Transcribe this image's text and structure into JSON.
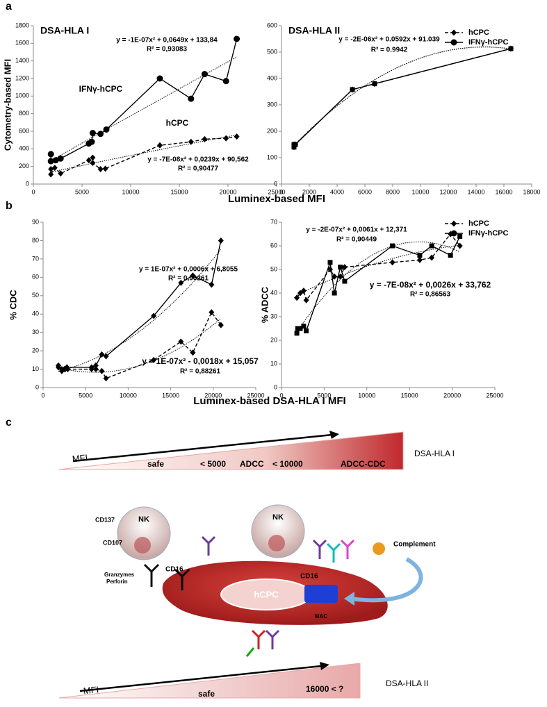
{
  "panel_labels": [
    "a",
    "b",
    "c"
  ],
  "x_axis_labels": [
    "Luminex-based MFI",
    "Luminex-based DSA-HLA I MFI"
  ],
  "chart_data": [
    {
      "type": "scatter",
      "title": "DSA-HLA I",
      "ylabel": "Cytometry-based MFI",
      "xlim": [
        0,
        25000
      ],
      "xticks": [
        0,
        5000,
        10000,
        15000,
        20000,
        25000
      ],
      "ylim": [
        0,
        1800
      ],
      "yticks": [
        0,
        200,
        400,
        600,
        800,
        1000,
        1200,
        1400,
        1600,
        1800
      ],
      "trendline": true,
      "legend": "none",
      "annotations": [
        "y = -1E-07x² + 0,0649x + 133,84",
        "R² = 0,93083",
        "IFNγ-hCPC",
        "hCPC",
        "y = -7E-08x² + 0,0239x + 90,562",
        "R² = 0,90477"
      ],
      "series": [
        {
          "name": "hCPC",
          "color": "#000000",
          "marker": "diamond",
          "dashed": true,
          "x": [
            1800,
            1800,
            2200,
            2800,
            5700,
            6100,
            6100,
            6900,
            7400,
            13000,
            16200,
            17600,
            19800,
            20900
          ],
          "values": [
            170,
            110,
            185,
            120,
            270,
            300,
            240,
            170,
            175,
            440,
            480,
            510,
            520,
            540
          ]
        },
        {
          "name": "IFNγ-hCPC",
          "color": "#000000",
          "marker": "circle",
          "dashed": false,
          "x": [
            1800,
            1800,
            2300,
            2800,
            5700,
            6000,
            6100,
            6900,
            7500,
            13000,
            16200,
            17600,
            19800,
            20900
          ],
          "values": [
            340,
            260,
            270,
            290,
            460,
            480,
            580,
            570,
            620,
            1200,
            970,
            1250,
            1170,
            1650
          ]
        }
      ]
    },
    {
      "type": "scatter",
      "title": "DSA-HLA II",
      "xlim": [
        0,
        18000
      ],
      "xticks": [
        0,
        2000,
        4000,
        6000,
        8000,
        10000,
        12000,
        14000,
        16000,
        18000
      ],
      "ylim": [
        0,
        600
      ],
      "yticks": [
        0,
        100,
        200,
        300,
        400,
        500,
        600
      ],
      "trendline": true,
      "legend": "upper right",
      "annotations": [
        "y = -2E-06x² + 0.0592x + 91.039",
        "R² = 0.9942"
      ],
      "series": [
        {
          "name": "hCPC",
          "color": "#000000",
          "marker": "diamond",
          "dashed": true,
          "x": [
            900,
            900,
            1000,
            5100,
            6700,
            16500
          ],
          "values": [
            140,
            150,
            150,
            358,
            380,
            513
          ]
        },
        {
          "name": "IFNγ-hCPC",
          "color": "#000000",
          "marker": "square",
          "dashed": false,
          "x": [
            900,
            900,
            1000,
            5100,
            6700,
            16500
          ],
          "values": [
            140,
            150,
            150,
            358,
            380,
            513
          ]
        }
      ]
    },
    {
      "type": "scatter",
      "ylabel": "% CDC",
      "xlim": [
        0,
        25000
      ],
      "xticks": [
        0,
        5000,
        10000,
        15000,
        20000,
        25000
      ],
      "ylim": [
        0,
        90
      ],
      "yticks": [
        0,
        10,
        20,
        30,
        40,
        50,
        60,
        70,
        80,
        90
      ],
      "trendline": true,
      "legend": "none",
      "annotations": [
        "y = 1E-07x² + 0,0006x + 6,8055",
        "R² = 0,96261",
        "y = 1E-07x² - 0,0018x + 15,057",
        "R² = 0,88261"
      ],
      "series": [
        {
          "name": "hCPC",
          "color": "#000000",
          "marker": "diamond",
          "dashed": true,
          "x": [
            1800,
            2200,
            2600,
            2900,
            5700,
            6200,
            6900,
            7400,
            13000,
            16200,
            17600,
            19800,
            20900
          ],
          "values": [
            11,
            9,
            10,
            10,
            10,
            10,
            9,
            5,
            15,
            25,
            19,
            41,
            34
          ]
        },
        {
          "name": "IFNγ-hCPC",
          "color": "#000000",
          "marker": "diamond",
          "dashed": false,
          "x": [
            1800,
            2200,
            2500,
            2800,
            5700,
            6200,
            6900,
            7400,
            13000,
            16200,
            17600,
            19800,
            20900
          ],
          "values": [
            12,
            10,
            10,
            11,
            11,
            12,
            18,
            17,
            39,
            57,
            61,
            56,
            80
          ]
        }
      ]
    },
    {
      "type": "scatter",
      "ylabel": "% ADCC",
      "xlim": [
        0,
        25000
      ],
      "xticks": [
        0,
        5000,
        10000,
        15000,
        20000,
        25000
      ],
      "ylim": [
        0,
        70
      ],
      "yticks": [
        0,
        10,
        20,
        30,
        40,
        50,
        60,
        70
      ],
      "trendline": true,
      "legend": "upper right",
      "annotations": [
        "y = -2E-07x² + 0,0061x + 12,371",
        "R² = 0,90449",
        "y = -7E-08x² + 0,0026x + 33,762",
        "R² = 0,86563"
      ],
      "series": [
        {
          "name": "hCPC",
          "color": "#000000",
          "marker": "diamond",
          "dashed": true,
          "x": [
            1800,
            2200,
            2600,
            2900,
            5700,
            6200,
            6900,
            7400,
            13000,
            16200,
            17600,
            19800,
            20900
          ],
          "values": [
            38,
            40,
            41,
            37,
            50,
            47,
            47,
            51,
            53,
            54,
            55,
            65,
            60
          ]
        },
        {
          "name": "IFNγ-hCPC",
          "color": "#000000",
          "marker": "square",
          "dashed": false,
          "x": [
            1800,
            1900,
            2200,
            2600,
            2900,
            5700,
            6200,
            6900,
            7400,
            13000,
            16200,
            17600,
            19800,
            20900
          ],
          "values": [
            23,
            25,
            25,
            26,
            24,
            53,
            40,
            51,
            45,
            60,
            56,
            60,
            56,
            64
          ]
        }
      ]
    }
  ],
  "diagram": {
    "top_scale": {
      "axis": "MFI",
      "zones": [
        "safe",
        "< 5000",
        "ADCC",
        "< 10000",
        "ADCC-CDC"
      ],
      "label": "DSA-HLA I"
    },
    "cells": {
      "nk": [
        "NK",
        "NK"
      ],
      "markers": [
        "CD137",
        "CD107",
        "CD16",
        "CD16"
      ],
      "molecules": [
        "Granzymes",
        "Perforin"
      ],
      "complement": "Complement",
      "target": "hCPC",
      "mac": "MAC"
    },
    "bottom_scale": {
      "axis": "MFI",
      "zones": [
        "safe",
        "16000 < ?"
      ],
      "label": "DSA-HLA II"
    }
  }
}
